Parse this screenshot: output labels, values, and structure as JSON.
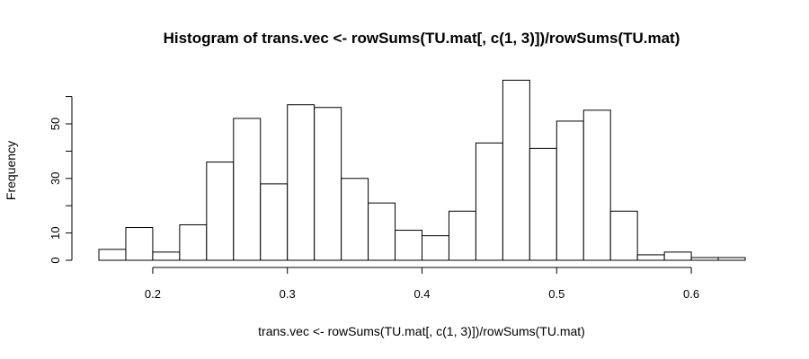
{
  "chart_data": {
    "type": "bar",
    "title": "Histogram of trans.vec <- rowSums(TU.mat[, c(1, 3)])/rowSums(TU.mat)",
    "xlabel": "trans.vec <- rowSums(TU.mat[, c(1, 3)])/rowSums(TU.mat)",
    "ylabel": "Frequency",
    "bin_edges": [
      0.16,
      0.18,
      0.2,
      0.22,
      0.24,
      0.26,
      0.28,
      0.3,
      0.32,
      0.34,
      0.36,
      0.38,
      0.4,
      0.42,
      0.44,
      0.46,
      0.48,
      0.5,
      0.52,
      0.54,
      0.56,
      0.58,
      0.6,
      0.62,
      0.64
    ],
    "values": [
      4,
      12,
      3,
      13,
      36,
      52,
      28,
      57,
      56,
      30,
      21,
      11,
      9,
      18,
      43,
      66,
      41,
      51,
      55,
      18,
      2,
      3,
      1,
      1
    ],
    "xlim": [
      0.16,
      0.64
    ],
    "ylim": [
      0,
      60
    ],
    "xticks": [
      0.2,
      0.3,
      0.4,
      0.5,
      0.6
    ],
    "xtick_labels": [
      "0.2",
      "0.3",
      "0.4",
      "0.5",
      "0.6"
    ],
    "yticks": [
      0,
      10,
      30,
      50
    ],
    "ytick_labels": [
      "0",
      "10",
      "30",
      "50"
    ],
    "grid": false
  }
}
